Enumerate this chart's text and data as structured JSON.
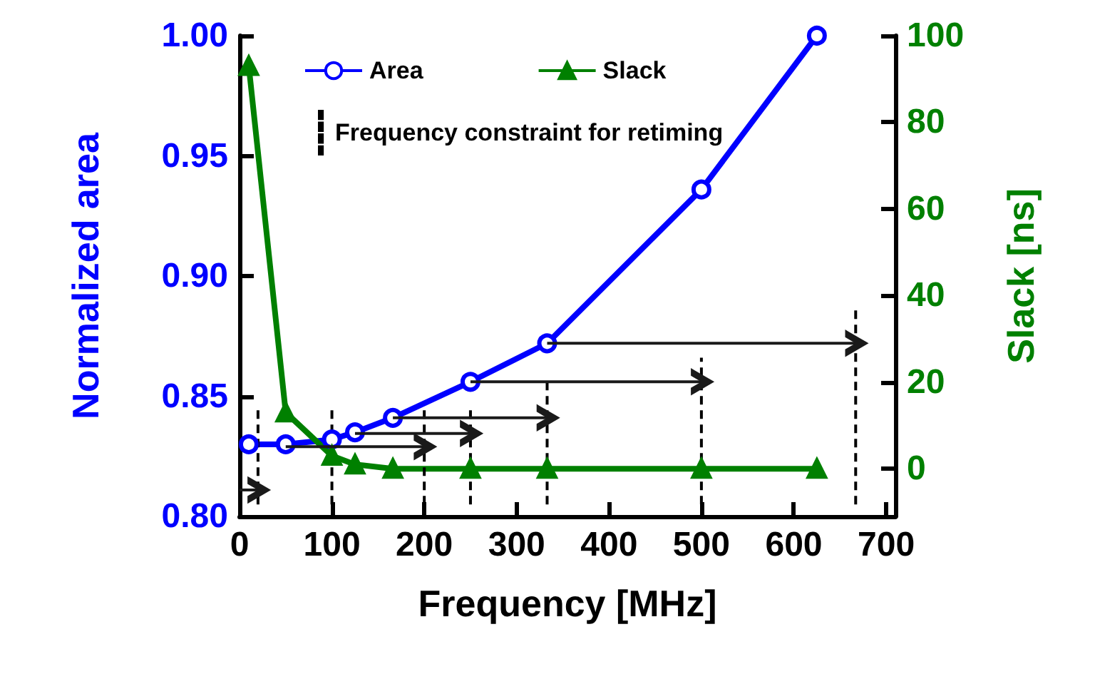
{
  "chart_data": {
    "type": "line",
    "xlabel": "Frequency [MHz]",
    "ylabel": "Normalized area",
    "y2label": "Slack [ns]",
    "xlim": [
      0,
      710
    ],
    "xticks": [
      0,
      100,
      200,
      300,
      400,
      500,
      600,
      700
    ],
    "ylim": [
      0.8,
      1.0
    ],
    "yticks": [
      {
        "value": 0.8,
        "label": "0.80"
      },
      0.85,
      {
        "value": 0.9,
        "label": "0.90"
      },
      0.95,
      {
        "value": 1.0,
        "label": "1.00"
      }
    ],
    "y2lim": [
      -11,
      100
    ],
    "y2ticks": [
      0,
      20,
      40,
      60,
      80,
      100
    ],
    "legend": "top",
    "grid": false,
    "series": [
      {
        "name": "Area",
        "color": "#0000ff",
        "marker": "circle",
        "line_style": "solid",
        "x": [
          10,
          50,
          100,
          125,
          166,
          250,
          333,
          500,
          625
        ],
        "values": [
          0.83,
          0.83,
          0.832,
          0.835,
          0.841,
          0.856,
          0.872,
          0.936,
          1.0
        ]
      },
      {
        "name": "Slack",
        "color": "#008000",
        "marker": "triangle",
        "line_style": "solid",
        "axis": "y2",
        "x": [
          10,
          50,
          100,
          125,
          166,
          250,
          333,
          500,
          625
        ],
        "values": [
          93,
          13,
          3,
          1,
          0,
          0,
          0,
          0,
          0
        ]
      },
      {
        "name": "Frequency constraint for retiming",
        "color": "#000000",
        "marker": "none",
        "line_style": "dashed",
        "x": [
          20,
          20,
          null,
          100,
          100,
          null,
          200,
          200,
          null,
          250,
          250,
          null,
          333,
          333,
          null,
          500,
          500,
          null,
          667,
          667
        ],
        "values": [
          0.805,
          0.846,
          null,
          0.805,
          0.846,
          null,
          0.805,
          0.846,
          null,
          0.805,
          0.846,
          null,
          0.805,
          0.857,
          null,
          0.805,
          0.866,
          null,
          0.805,
          0.886
        ]
      },
      {
        "color": "#1a1a1a",
        "marker": "none",
        "line_style": "solid",
        "x": [
          0,
          20
        ],
        "values": [
          0.811,
          0.811
        ]
      },
      {
        "color": "#1a1a1a",
        "marker": "none",
        "line_style": "solid",
        "x": [
          50,
          200
        ],
        "values": [
          0.829,
          0.829
        ]
      },
      {
        "color": "#1a1a1a",
        "marker": "none",
        "line_style": "solid",
        "x": [
          125,
          250
        ],
        "values": [
          0.8345,
          0.8345
        ]
      },
      {
        "color": "#1a1a1a",
        "marker": "none",
        "line_style": "solid",
        "x": [
          166,
          333
        ],
        "values": [
          0.841,
          0.841
        ]
      },
      {
        "color": "#1a1a1a",
        "marker": "none",
        "line_style": "solid",
        "x": [
          250,
          500
        ],
        "values": [
          0.856,
          0.856
        ]
      },
      {
        "color": "#1a1a1a",
        "marker": "none",
        "line_style": "solid",
        "x": [
          333,
          667
        ],
        "values": [
          0.872,
          0.872
        ]
      }
    ]
  }
}
